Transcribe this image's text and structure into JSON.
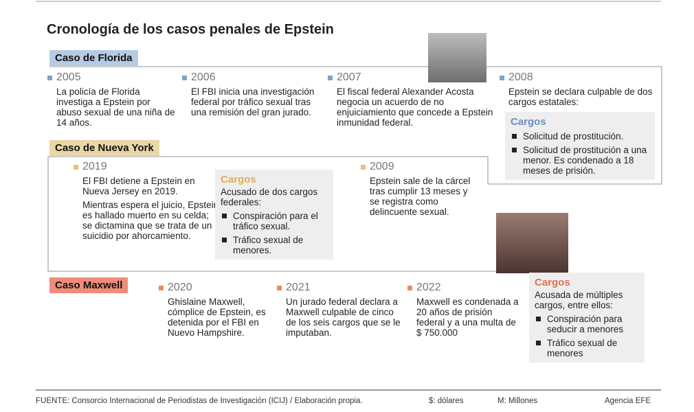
{
  "title": "Cronología de los casos penales de Epstein",
  "sections": [
    {
      "label": "Caso de Florida",
      "events": [
        {
          "year": "2005",
          "text": [
            "La policía de Florida investiga a Epstein por abuso sexual de una niña de 14 años."
          ]
        },
        {
          "year": "2006",
          "text": [
            "El FBI inicia una investigación federal por tráfico sexual tras una remisión del gran jurado."
          ]
        },
        {
          "year": "2007",
          "text": [
            "El fiscal federal Alexander Acosta negocia un acuerdo de no enjuiciamiento que concede a Epstein inmunidad federal."
          ]
        },
        {
          "year": "2008",
          "text": [
            "Epstein se declara culpable de dos cargos estatales:"
          ]
        }
      ],
      "charges": {
        "title": "Cargos",
        "items": [
          "Solicitud de prostitución.",
          "Solicitud de prostitución a una menor. Es condenado a 18 meses de prisión."
        ]
      }
    },
    {
      "label": "Caso de Nueva York",
      "events": [
        {
          "year": "2019",
          "text": [
            "El FBI detiene a Epstein en Nueva Jersey en 2019.",
            "Mientras espera el juicio, Epstein es hallado muerto en su celda; se dictamina que se trata de un suicidio por ahorcamiento."
          ]
        },
        {
          "year": "2009",
          "text": [
            "Epstein sale de la cárcel tras cumplir 13 meses y se registra como delincuente sexual."
          ]
        }
      ],
      "charges": {
        "title": "Cargos",
        "intro": "Acusado de dos cargos federales:",
        "items": [
          "Conspiración para el tráfico sexual.",
          "Tráfico sexual de menores."
        ]
      }
    },
    {
      "label": "Caso Maxwell",
      "events": [
        {
          "year": "2020",
          "text": [
            "Ghislaine Maxwell, cómplice de Epstein, es detenida por el FBI en Nuevo Hampshire."
          ]
        },
        {
          "year": "2021",
          "text": [
            "Un jurado federal declara a Maxwell culpable de cinco de los seis cargos que se le imputaban."
          ]
        },
        {
          "year": "2022",
          "text": [
            "Maxwell es condenada a 20 años de prisión federal y a una multa de $ 750.000"
          ]
        }
      ],
      "charges": {
        "title": "Cargos",
        "intro": "Acusada de múltiples cargos, entre ellos:",
        "items": [
          "Conspiración para seducir a menores",
          "Tráfico sexual de menores"
        ]
      }
    }
  ],
  "footer": {
    "source": "FUENTE: Consorcio Internacional de Periodistas de Investigación (ICIJ) / Elaboración propia.",
    "currency": "$: dólares",
    "units": "M: Millones",
    "agency": "Agencia EFE"
  }
}
